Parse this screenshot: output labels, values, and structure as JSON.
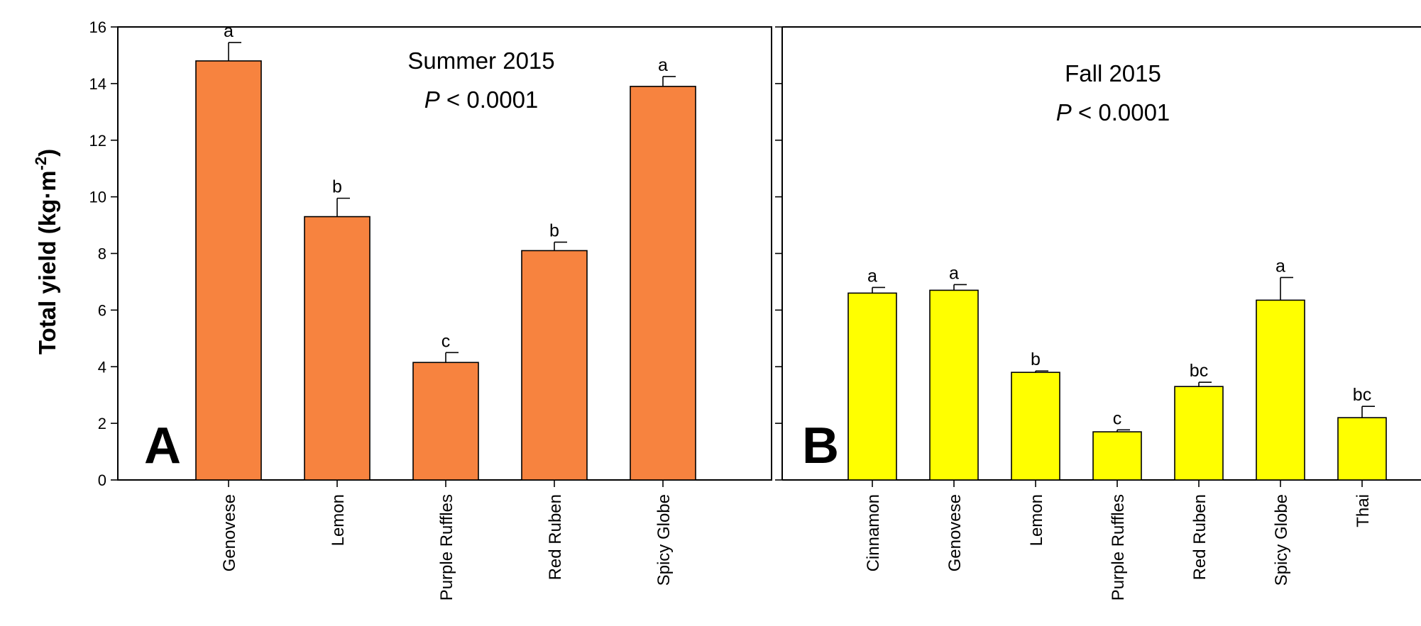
{
  "ylabel_main": "Total yield (kg",
  "ylabel_dot": "·",
  "ylabel_unit": "m",
  "ylabel_exp": "-2",
  "ylabel_close": ")",
  "chart_data": [
    {
      "type": "bar",
      "panel_label": "A",
      "title": "Summer 2015",
      "p_label": "P",
      "p_rest": " < 0.0001",
      "bar_color": "#F7833F",
      "ylim": [
        0,
        16
      ],
      "yticks": [
        "0",
        "2",
        "4",
        "6",
        "8",
        "10",
        "12",
        "14",
        "16"
      ],
      "categories": [
        "Genovese",
        "Lemon",
        "Purple Ruffles",
        "Red Ruben",
        "Spicy Globe"
      ],
      "values": [
        14.8,
        9.3,
        4.15,
        8.1,
        13.9
      ],
      "errors": [
        0.65,
        0.65,
        0.35,
        0.3,
        0.35
      ],
      "letters": [
        "a",
        "b",
        "c",
        "b",
        "a"
      ]
    },
    {
      "type": "bar",
      "panel_label": "B",
      "title": "Fall 2015",
      "p_label": "P",
      "p_rest": " < 0.0001",
      "bar_color": "#FFFF00",
      "ylim": [
        0,
        16
      ],
      "categories": [
        "Cinnamon",
        "Genovese",
        "Lemon",
        "Purple Ruffles",
        "Red Ruben",
        "Spicy Globe",
        "Thai"
      ],
      "values": [
        6.6,
        6.7,
        3.8,
        1.7,
        3.3,
        6.35,
        2.2
      ],
      "errors": [
        0.2,
        0.2,
        0.05,
        0.07,
        0.15,
        0.8,
        0.4
      ],
      "letters": [
        "a",
        "a",
        "b",
        "c",
        "bc",
        "a",
        "bc"
      ]
    }
  ]
}
